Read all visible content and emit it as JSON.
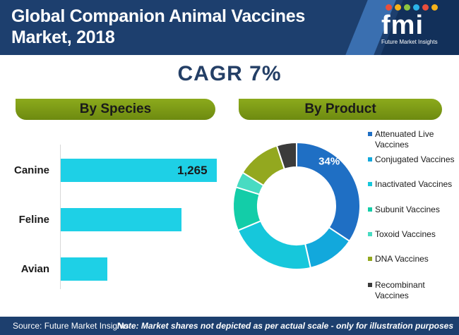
{
  "header": {
    "title_line1": "Global Companion Animal Vaccines",
    "title_line2": "Market, 2018",
    "bg_color": "#1d3f6e",
    "logo_mark": "fmi",
    "logo_sub": "Future Market Insights"
  },
  "cagr": "CAGR 7%",
  "species_panel": {
    "title": "By Species"
  },
  "product_panel": {
    "title": "By Product"
  },
  "chart_data": [
    {
      "type": "bar",
      "orientation": "horizontal",
      "title": "By Species",
      "categories": [
        "Canine",
        "Feline",
        "Avian"
      ],
      "values": [
        1265,
        980,
        380
      ],
      "data_labels": [
        "1,265",
        "",
        ""
      ],
      "color": "#1ed0e6",
      "xlim": [
        0,
        1350
      ]
    },
    {
      "type": "pie",
      "style": "donut",
      "title": "By Product",
      "labels": [
        "Attenuated Live Vaccines",
        "Conjugated Vaccines",
        "Inactivated Vaccines",
        "Subunit Vaccines",
        "Toxoid Vaccines",
        "DNA Vaccines",
        "Recombinant Vaccines"
      ],
      "values": [
        34,
        12,
        22,
        11,
        4,
        11,
        5
      ],
      "data_labels": [
        "34%",
        "",
        "",
        "",
        "",
        "",
        ""
      ],
      "colors": [
        "#1f6fc4",
        "#12a8dc",
        "#16c7db",
        "#13cda8",
        "#48dbc2",
        "#93a81f",
        "#3b3b3b"
      ],
      "legend_position": "right"
    }
  ],
  "footer": {
    "source": "Source: Future Market Insights",
    "note": "Note: Market shares not depicted as per actual scale - only for illustration purposes"
  }
}
